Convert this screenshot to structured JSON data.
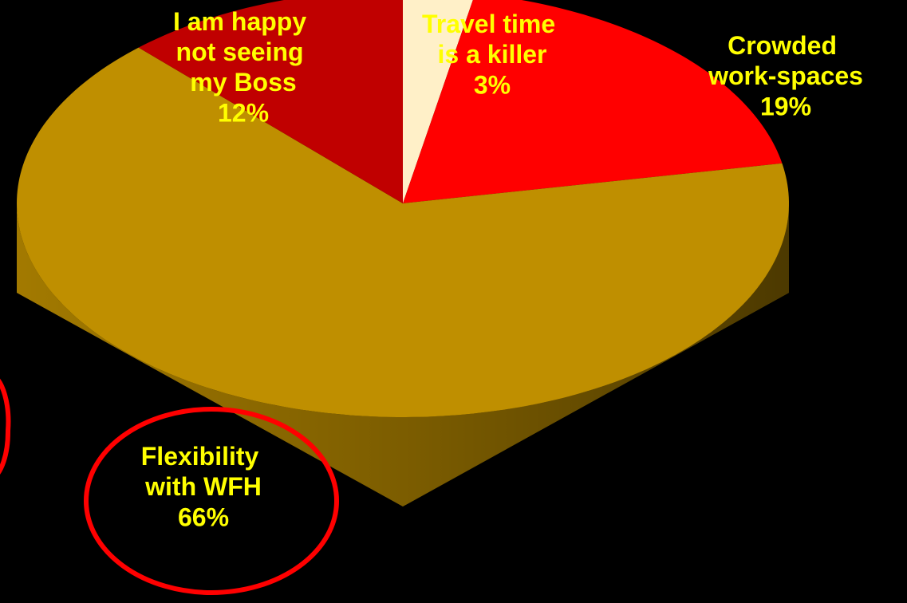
{
  "chart_data": {
    "type": "pie",
    "categories": [
      "Travel time is a killer",
      "Crowded work-spaces",
      "Flexibility with WFH",
      "I am happy not seeing my Boss"
    ],
    "values": [
      3,
      19,
      66,
      12
    ],
    "value_labels": [
      "3%",
      "19%",
      "66%",
      "12%"
    ],
    "colors": [
      "#fff0c8",
      "#ff0000",
      "#bf8f00",
      "#c00000"
    ],
    "label_color": "#ffff00"
  }
}
